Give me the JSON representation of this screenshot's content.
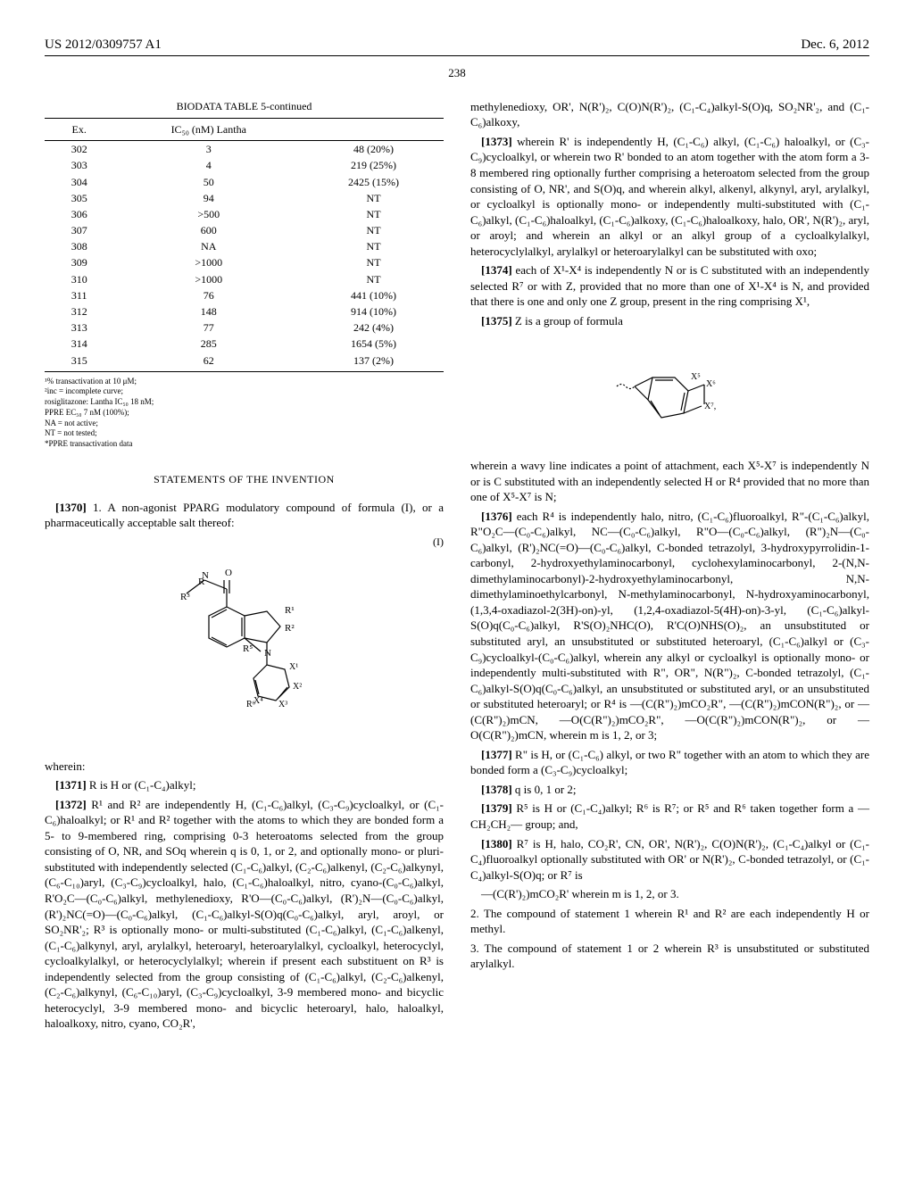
{
  "header": {
    "publication_number": "US 2012/0309757 A1",
    "date": "Dec. 6, 2012"
  },
  "page_number": "238",
  "table": {
    "title": "BIODATA TABLE 5-continued",
    "headers": [
      "Ex.",
      "IC₅₀ (nM) Lantha",
      ""
    ],
    "rows": [
      [
        "302",
        "3",
        "48 (20%)"
      ],
      [
        "303",
        "4",
        "219 (25%)"
      ],
      [
        "304",
        "50",
        "2425 (15%)"
      ],
      [
        "305",
        "94",
        "NT"
      ],
      [
        "306",
        ">500",
        "NT"
      ],
      [
        "307",
        "600",
        "NT"
      ],
      [
        "308",
        "NA",
        "NT"
      ],
      [
        "309",
        ">1000",
        "NT"
      ],
      [
        "310",
        ">1000",
        "NT"
      ],
      [
        "311",
        "76",
        "441 (10%)"
      ],
      [
        "312",
        "148",
        "914 (10%)"
      ],
      [
        "313",
        "77",
        "242 (4%)"
      ],
      [
        "314",
        "285",
        "1654 (5%)"
      ],
      [
        "315",
        "62",
        "137 (2%)"
      ]
    ],
    "footnotes": [
      "¹% transactivation at 10 μM;",
      "²inc = incomplete curve;",
      "rosiglitazone: Lantha IC₅₀ 18 nM;",
      "PPRE EC₅₀ 7 nM (100%);",
      "NA = not active;",
      "NT = not tested;",
      "*PPRE transactivation data"
    ]
  },
  "section_heading": "STATEMENTS OF THE INVENTION",
  "paragraphs": {
    "p1370": "1. A non-agonist PPARG modulatory compound of formula (I), or a pharmaceutically acceptable salt thereof:",
    "formula_label": "(I)",
    "wherein": "wherein:",
    "p1371": "R is H or (C₁-C₄)alkyl;",
    "p1372": "R¹ and R² are independently H, (C₁-C₆)alkyl, (C₃-C₉)cycloalkyl, or (C₁-C₆)haloalkyl; or R¹ and R² together with the atoms to which they are bonded form a 5- to 9-membered ring, comprising 0-3 heteroatoms selected from the group consisting of O, NR, and SOq wherein q is 0, 1, or 2, and optionally mono- or pluri-substituted with independently selected (C₁-C₆)alkyl, (C₂-C₆)alkenyl, (C₂-C₆)alkynyl, (C₆-C₁₀)aryl, (C₃-C₉)cycloalkyl, halo, (C₁-C₆)haloalkyl, nitro, cyano-(C₀-C₆)alkyl, R'O₂C—(C₀-C₆)alkyl, methylenedioxy, R'O—(C₀-C₆)alkyl, (R')₂N—(C₀-C₆)alkyl, (R')₂NC(=O)—(C₀-C₆)alkyl, (C₁-C₆)alkyl-S(O)q(C₀-C₆)alkyl, aryl, aroyl, or SO₂NR'₂; R³ is optionally mono- or multi-substituted (C₁-C₆)alkyl, (C₁-C₆)alkenyl, (C₁-C₆)alkynyl, aryl, arylalkyl, heteroaryl, heteroarylalkyl, cycloalkyl, heterocyclyl, cycloalkylalkyl, or heterocyclylalkyl; wherein if present each substituent on R³ is independently selected from the group consisting of (C₁-C₆)alkyl, (C₂-C₆)alkenyl, (C₂-C₆)alkynyl, (C₆-C₁₀)aryl, (C₃-C₉)cycloalkyl, 3-9 membered mono- and bicyclic heterocyclyl, 3-9 membered mono- and bicyclic heteroaryl, halo, haloalkyl, haloalkoxy, nitro, cyano, CO₂R',",
    "p1372_cont": "methylenedioxy, OR', N(R')₂, C(O)N(R')₂, (C₁-C₄)alkyl-S(O)q, SO₂NR'₂, and (C₁-C₆)alkoxy,",
    "p1373": "wherein R' is independently H, (C₁-C₆) alkyl, (C₁-C₆) haloalkyl, or (C₃-C₉)cycloalkyl, or wherein two R' bonded to an atom together with the atom form a 3-8 membered ring optionally further comprising a heteroatom selected from the group consisting of O, NR', and S(O)q, and wherein alkyl, alkenyl, alkynyl, aryl, arylalkyl, or cycloalkyl is optionally mono- or independently multi-substituted with (C₁-C₆)alkyl, (C₁-C₆)haloalkyl, (C₁-C₆)alkoxy, (C₁-C₆)haloalkoxy, halo, OR', N(R')₂, aryl, or aroyl; and wherein an alkyl or an alkyl group of a cycloalkylalkyl, heterocyclylalkyl, arylalkyl or heteroarylalkyl can be substituted with oxo;",
    "p1374": "each of X¹-X⁴ is independently N or is C substituted with an independently selected R⁷ or with Z, provided that no more than one of X¹-X⁴ is N, and provided that there is one and only one Z group, present in the ring comprising X¹,",
    "p1375": "Z is a group of formula",
    "z_text": "wherein a wavy line indicates a point of attachment, each X⁵-X⁷ is independently N or is C substituted with an independently selected H or R⁴ provided that no more than one of X⁵-X⁷ is N;",
    "p1376": "each R⁴ is independently halo, nitro, (C₁-C₆)fluoroalkyl, R\"-(C₁-C₆)alkyl, R\"O₂C—(C₀-C₆)alkyl, NC—(C₀-C₆)alkyl, R\"O—(C₀-C₆)alkyl, (R\")₂N—(C₀-C₆)alkyl, (R')₂NC(=O)—(C₀-C₆)alkyl, C-bonded tetrazolyl, 3-hydroxypyrrolidin-1-carbonyl, 2-hydroxyethylaminocarbonyl, cyclohexylaminocarbonyl, 2-(N,N-dimethylaminocarbonyl)-2-hydroxyethylaminocarbonyl, N,N-dimethylaminoethylcarbonyl, N-methylaminocarbonyl, N-hydroxyaminocarbonyl, (1,3,4-oxadiazol-2(3H)-on)-yl, (1,2,4-oxadiazol-5(4H)-on)-3-yl, (C₁-C₆)alkyl-S(O)q(C₀-C₆)alkyl, R'S(O)₂NHC(O), R'C(O)NHS(O)₂, an unsubstituted or substituted aryl, an unsubstituted or substituted heteroaryl, (C₁-C₆)alkyl or (C₃-C₉)cycloalkyl-(C₀-C₆)alkyl, wherein any alkyl or cycloalkyl is optionally mono- or independently multi-substituted with R\", OR\", N(R\")₂, C-bonded tetrazolyl, (C₁-C₆)alkyl-S(O)q(C₀-C₆)alkyl, an unsubstituted or substituted aryl, or an unsubstituted or substituted heteroaryl; or R⁴ is —(C(R\")₂)mCO₂R\", —(C(R\")₂)mCON(R\")₂, or —(C(R\")₂)mCN, —O(C(R\")₂)mCO₂R\", —O(C(R\")₂)mCON(R\")₂, or —O(C(R\")₂)mCN, wherein m is 1, 2, or 3;",
    "p1377": "R\" is H, or (C₁-C₆) alkyl, or two R\" together with an atom to which they are bonded form a (C₃-C₉)cycloalkyl;",
    "p1378": "q is 0, 1 or 2;",
    "p1379": "R⁵ is H or (C₁-C₄)alkyl; R⁶ is R⁷; or R⁵ and R⁶ taken together form a —CH₂CH₂— group; and,",
    "p1380": "R⁷ is H, halo, CO₂R', CN, OR', N(R')₂, C(O)N(R')₂, (C₁-C₄)alkyl or (C₁-C₄)fluoroalkyl optionally substituted with OR' or N(R')₂, C-bonded tetrazolyl, or (C₁-C₄)alkyl-S(O)q; or R⁷ is",
    "p1380_cont": "—(C(R')₂)mCO₂R' wherein m is 1, 2, or 3.",
    "stmt2": "2. The compound of statement 1 wherein R¹ and R² are each independently H or methyl.",
    "stmt3": "3. The compound of statement 1 or 2 wherein R³ is unsubstituted or substituted arylalkyl."
  }
}
